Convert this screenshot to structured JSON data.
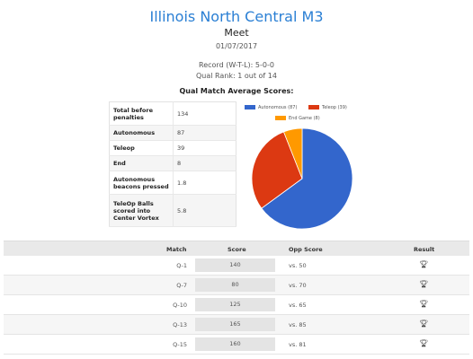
{
  "header": {
    "team_name": "Illinois North Central M3",
    "event_type": "Meet",
    "date": "01/07/2017",
    "record": "Record (W-T-L): 5-0-0",
    "qual_rank": "Qual Rank: 1 out of 14"
  },
  "averages": {
    "title": "Qual Match Average Scores:",
    "rows": [
      {
        "label": "Total before penalties",
        "value": "134"
      },
      {
        "label": "Autonomous",
        "value": "87"
      },
      {
        "label": "Teleop",
        "value": "39"
      },
      {
        "label": "End",
        "value": "8"
      },
      {
        "label": "Autonomous beacons pressed",
        "value": "1.8"
      },
      {
        "label": "TeleOp Balls scored into Center Vortex",
        "value": "5.8"
      }
    ]
  },
  "chart_data": {
    "type": "pie",
    "legend_position": "top",
    "slices": [
      {
        "label": "Autonomous (87)",
        "value": 87,
        "color": "#3366cc"
      },
      {
        "label": "Teleop (39)",
        "value": 39,
        "color": "#dc3912"
      },
      {
        "label": "End Game (8)",
        "value": 8,
        "color": "#ff9900"
      }
    ]
  },
  "matches": {
    "headers": {
      "match": "Match",
      "score": "Score",
      "opp": "Opp Score",
      "result": "Result"
    },
    "rows": [
      {
        "match": "Q-1",
        "score": "140",
        "opp": "vs. 50",
        "result_icon": "trophy-icon"
      },
      {
        "match": "Q-7",
        "score": "80",
        "opp": "vs. 70",
        "result_icon": "trophy-icon"
      },
      {
        "match": "Q-10",
        "score": "125",
        "opp": "vs. 65",
        "result_icon": "trophy-icon"
      },
      {
        "match": "Q-13",
        "score": "165",
        "opp": "vs. 85",
        "result_icon": "trophy-icon"
      },
      {
        "match": "Q-15",
        "score": "160",
        "opp": "vs. 81",
        "result_icon": "trophy-icon"
      }
    ]
  }
}
